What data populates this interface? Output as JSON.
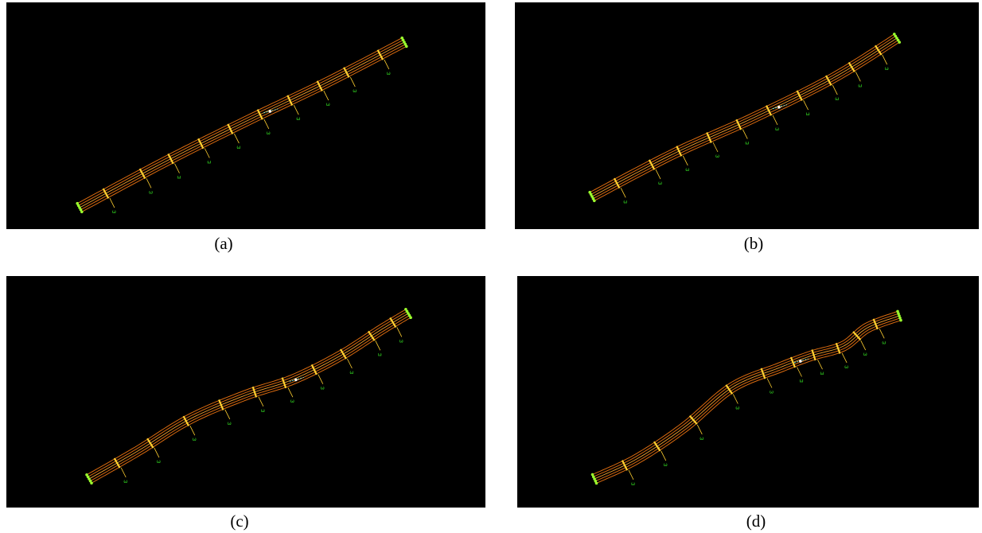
{
  "colors": {
    "background": "#000000",
    "beam": "#d86a10",
    "beam_highlight": "#f0a030",
    "crossbeam": "#ffd030",
    "support": "#33dd22",
    "node": "#9bff2e",
    "marker": "#66ffff"
  },
  "panels": [
    {
      "caption": "(a)",
      "shape": "straight"
    },
    {
      "caption": "(b)",
      "shape": "slight-curve"
    },
    {
      "caption": "(c)",
      "shape": "s-curve"
    },
    {
      "caption": "(d)",
      "shape": "strong-s-curve"
    }
  ]
}
